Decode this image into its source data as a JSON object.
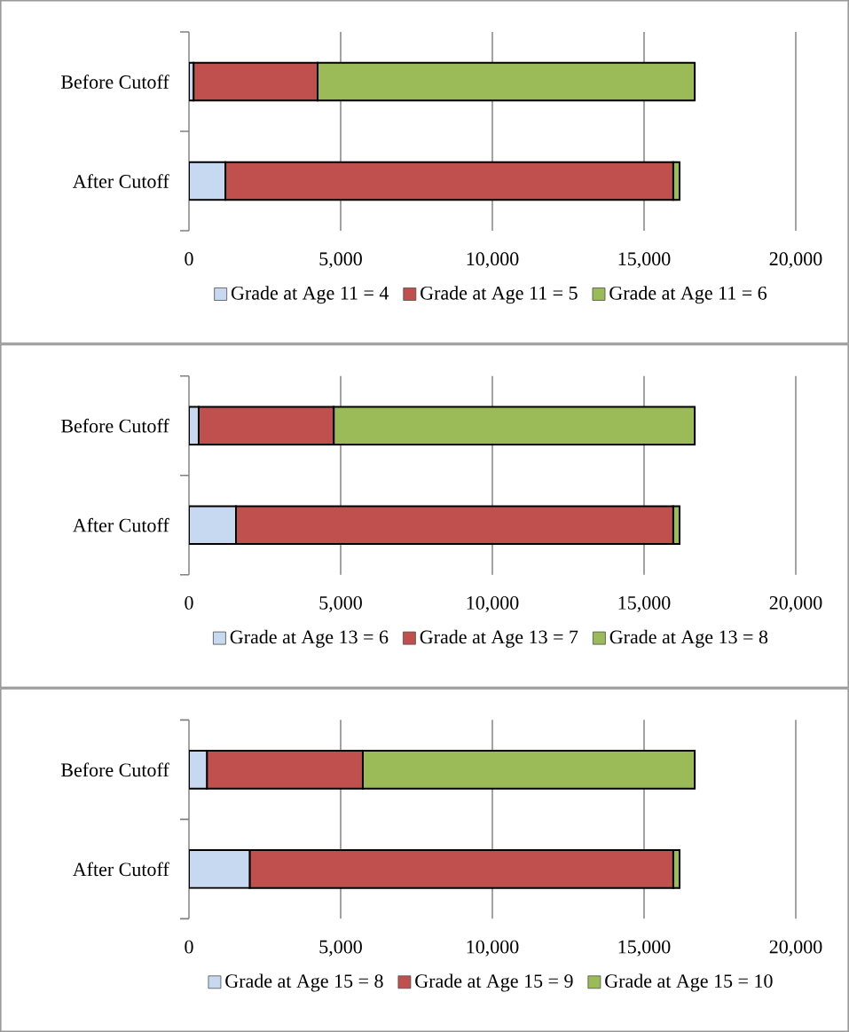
{
  "chart_data": [
    {
      "type": "bar",
      "orientation": "horizontal",
      "stacked": true,
      "categories": [
        "Before Cutoff",
        "After Cutoff"
      ],
      "series": [
        {
          "name": "Grade at Age 11 = 4",
          "color": "#c6d9f1",
          "values": [
            150,
            1200
          ]
        },
        {
          "name": "Grade at Age 11 = 5",
          "color": "#c0504d",
          "values": [
            4090,
            14760
          ]
        },
        {
          "name": "Grade at Age 11 = 6",
          "color": "#9bbb59",
          "values": [
            12430,
            210
          ]
        }
      ],
      "xlim": [
        0,
        20000
      ],
      "xticks": [
        0,
        {
          "value": 5000,
          "label": "5,000"
        },
        {
          "value": 10000,
          "label": "10,000"
        },
        {
          "value": 15000,
          "label": "15,000"
        },
        {
          "value": 20000,
          "label": "20,000"
        }
      ],
      "grid": "x",
      "legend": "bottom"
    },
    {
      "type": "bar",
      "orientation": "horizontal",
      "stacked": true,
      "categories": [
        "Before Cutoff",
        "After Cutoff"
      ],
      "series": [
        {
          "name": "Grade at Age 13 = 6",
          "color": "#c6d9f1",
          "values": [
            320,
            1550
          ]
        },
        {
          "name": "Grade at Age 13 = 7",
          "color": "#c0504d",
          "values": [
            4450,
            14410
          ]
        },
        {
          "name": "Grade at Age 13 = 8",
          "color": "#9bbb59",
          "values": [
            11900,
            210
          ]
        }
      ],
      "xlim": [
        0,
        20000
      ],
      "xticks": [
        0,
        {
          "value": 5000,
          "label": "5,000"
        },
        {
          "value": 10000,
          "label": "10,000"
        },
        {
          "value": 15000,
          "label": "15,000"
        },
        {
          "value": 20000,
          "label": "20,000"
        }
      ],
      "grid": "x",
      "legend": "bottom"
    },
    {
      "type": "bar",
      "orientation": "horizontal",
      "stacked": true,
      "categories": [
        "Before Cutoff",
        "After Cutoff"
      ],
      "series": [
        {
          "name": "Grade at Age 15 = 8",
          "color": "#c6d9f1",
          "values": [
            590,
            2000
          ]
        },
        {
          "name": "Grade at Age 15 = 9",
          "color": "#c0504d",
          "values": [
            5140,
            13960
          ]
        },
        {
          "name": "Grade at Age 15 = 10",
          "color": "#9bbb59",
          "values": [
            10940,
            210
          ]
        }
      ],
      "xlim": [
        0,
        20000
      ],
      "xticks": [
        0,
        {
          "value": 5000,
          "label": "5,000"
        },
        {
          "value": 10000,
          "label": "10,000"
        },
        {
          "value": 15000,
          "label": "15,000"
        },
        {
          "value": 20000,
          "label": "20,000"
        }
      ],
      "grid": "x",
      "legend": "bottom"
    }
  ]
}
